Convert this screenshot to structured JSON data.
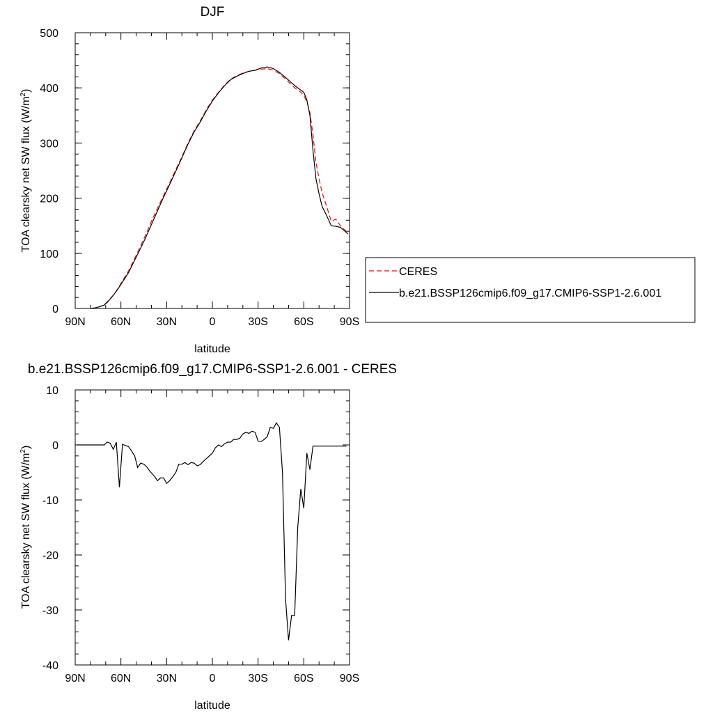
{
  "chart_data": [
    {
      "type": "line",
      "title": "DJF",
      "xlabel": "latitude",
      "ylabel": "TOA clearsky net SW flux (W/m",
      "ylabel_sup": "2",
      "ylabel_end": ")",
      "xlim": [
        90,
        -90
      ],
      "ylim": [
        0,
        500
      ],
      "xticks": [
        90,
        60,
        30,
        0,
        -30,
        -60,
        -90
      ],
      "xtick_labels": [
        "90N",
        "60N",
        "30N",
        "0",
        "30S",
        "60S",
        "90S"
      ],
      "yticks": [
        0,
        100,
        200,
        300,
        400,
        500
      ],
      "ytick_labels": [
        "0",
        "100",
        "200",
        "300",
        "400",
        "500"
      ],
      "legend_position": "right, outside plot",
      "series": [
        {
          "name": "CERES",
          "color": "#ff0000",
          "dash": "dashed",
          "x": [
            80,
            77,
            74,
            71,
            69,
            67,
            65,
            62,
            59,
            55,
            52,
            48,
            44,
            40,
            36,
            32,
            28,
            24,
            20,
            16,
            12,
            8,
            4,
            0,
            -4,
            -8,
            -12,
            -16,
            -20,
            -24,
            -28,
            -32,
            -36,
            -40,
            -44,
            -48,
            -52,
            -55,
            -58,
            -60,
            -62,
            -64,
            -66,
            -68,
            -70,
            -72,
            -75,
            -78,
            -81,
            -84,
            -87,
            -89
          ],
          "values": [
            0,
            1,
            3,
            7,
            12,
            18,
            24,
            36,
            50,
            68,
            85,
            108,
            132,
            158,
            182,
            205,
            228,
            252,
            275,
            300,
            322,
            340,
            360,
            378,
            392,
            405,
            416,
            422,
            427,
            430,
            432,
            434,
            435,
            432,
            426,
            416,
            405,
            398,
            392,
            386,
            375,
            355,
            315,
            265,
            235,
            210,
            185,
            158,
            162,
            150,
            142,
            136
          ]
        },
        {
          "name": "b.e21.BSSP126cmip6.f09_g17.CMIP6-SSP1-2.6.001",
          "color": "#000000",
          "dash": "solid",
          "x": [
            80,
            77,
            74,
            71,
            69,
            67,
            65,
            62,
            59,
            55,
            52,
            48,
            44,
            40,
            36,
            32,
            28,
            24,
            20,
            16,
            12,
            8,
            4,
            0,
            -4,
            -8,
            -12,
            -16,
            -20,
            -24,
            -28,
            -32,
            -36,
            -40,
            -44,
            -48,
            -52,
            -55,
            -58,
            -60,
            -62,
            -64,
            -66,
            -68,
            -70,
            -72,
            -75,
            -78,
            -81,
            -84,
            -87,
            -89
          ],
          "values": [
            0,
            1,
            3,
            6,
            11,
            17,
            24,
            35,
            48,
            65,
            82,
            104,
            127,
            152,
            177,
            202,
            225,
            249,
            273,
            298,
            320,
            338,
            358,
            376,
            391,
            404,
            415,
            421,
            426,
            430,
            432,
            436,
            438,
            435,
            428,
            419,
            409,
            402,
            396,
            392,
            378,
            350,
            287,
            235,
            208,
            185,
            168,
            150,
            149,
            147,
            140,
            135
          ]
        }
      ]
    },
    {
      "type": "line",
      "title": "b.e21.BSSP126cmip6.f09_g17.CMIP6-SSP1-2.6.001 - CERES",
      "xlabel": "latitude",
      "ylabel": "TOA clearsky net SW flux (W/m",
      "ylabel_sup": "2",
      "ylabel_end": ")",
      "xlim": [
        90,
        -90
      ],
      "ylim": [
        -40,
        10
      ],
      "xticks": [
        90,
        60,
        30,
        0,
        -30,
        -60,
        -90
      ],
      "xtick_labels": [
        "90N",
        "60N",
        "30N",
        "0",
        "30S",
        "60S",
        "90S"
      ],
      "yticks": [
        -40,
        -30,
        -20,
        -10,
        0,
        10
      ],
      "ytick_labels": [
        "-40",
        "-30",
        "-20",
        "-10",
        "0",
        "10"
      ],
      "series": [
        {
          "color": "#000000",
          "dash": "solid",
          "x": [
            89,
            86,
            83,
            80,
            77,
            75,
            73,
            71,
            69,
            67,
            65,
            63,
            61,
            59,
            57,
            55,
            53,
            51,
            49,
            47,
            45,
            43,
            41,
            38,
            36,
            34,
            32,
            30,
            28,
            26,
            24,
            22,
            20,
            18,
            16,
            14,
            12,
            10,
            8,
            6,
            4,
            2,
            0,
            -2,
            -4,
            -6,
            -8,
            -10,
            -12,
            -14,
            -16,
            -18,
            -20,
            -22,
            -24,
            -26,
            -28,
            -30,
            -32,
            -34,
            -36,
            -38,
            -40,
            -42,
            -44,
            -46,
            -48,
            -50,
            -52,
            -54,
            -56,
            -58,
            -60,
            -62,
            -64,
            -66,
            -68,
            -70,
            -72,
            -74,
            -76,
            -78,
            -80,
            -82,
            -84,
            -86,
            -88
          ],
          "values": [
            0,
            0,
            0,
            0,
            0,
            0,
            0,
            0,
            0.5,
            0.3,
            -0.8,
            0.5,
            -7.7,
            0.1,
            -0.1,
            -0.3,
            -1.1,
            -2.0,
            -4.1,
            -3.3,
            -3.5,
            -4.0,
            -4.8,
            -5.7,
            -6.5,
            -6.0,
            -6.0,
            -7.0,
            -6.5,
            -5.8,
            -5.0,
            -3.5,
            -3.5,
            -3.2,
            -3.6,
            -3.2,
            -3.3,
            -3.8,
            -3.6,
            -3.0,
            -2.5,
            -2.0,
            -1.5,
            -0.5,
            0,
            -0.3,
            0.2,
            0.5,
            0.5,
            1.0,
            1.0,
            1.2,
            2.0,
            2.3,
            2.1,
            2.5,
            2.3,
            0.7,
            0.6,
            1.0,
            1.5,
            3.2,
            3.0,
            4.0,
            3.2,
            -5.0,
            -28.0,
            -35.5,
            -31.0,
            -31.0,
            -15.0,
            -8.0,
            -11.5,
            -1.5,
            -4.5,
            -0.2,
            -0.2,
            -0.2,
            -0.2,
            -0.2,
            -0.2,
            -0.2,
            -0.2,
            -0.2,
            -0.2,
            -0.2,
            -0.2
          ]
        }
      ]
    }
  ]
}
